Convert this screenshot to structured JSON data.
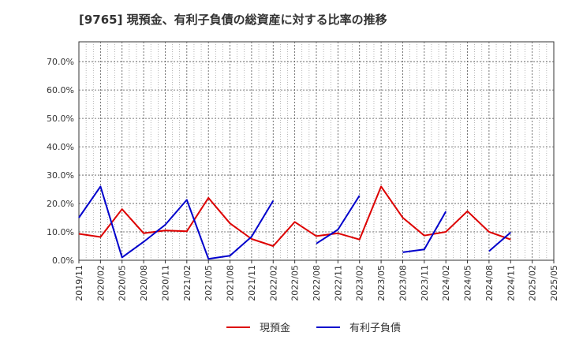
{
  "chart_data": {
    "type": "line",
    "title": "[9765]  現預金、有利子負債の総資産に対する比率の推移",
    "xlabel": "",
    "ylabel": "",
    "ylim": [
      0,
      77
    ],
    "yticks": [
      0,
      10,
      20,
      30,
      40,
      50,
      60,
      70
    ],
    "ytick_labels": [
      "0.0%",
      "10.0%",
      "20.0%",
      "30.0%",
      "40.0%",
      "50.0%",
      "60.0%",
      "70.0%"
    ],
    "categories": [
      "2019/11",
      "2020/02",
      "2020/05",
      "2020/08",
      "2020/11",
      "2021/02",
      "2021/05",
      "2021/08",
      "2021/11",
      "2022/02",
      "2022/05",
      "2022/08",
      "2022/11",
      "2023/02",
      "2023/05",
      "2023/08",
      "2023/11",
      "2024/02",
      "2024/05",
      "2024/08",
      "2024/11",
      "2025/02",
      "2025/05"
    ],
    "grid": true,
    "legend_position": "bottom",
    "series": [
      {
        "name": "現預金",
        "color": "#dd0000",
        "values": [
          9.3,
          8.2,
          18.0,
          9.5,
          10.5,
          10.2,
          22.0,
          13.0,
          7.5,
          5.0,
          13.5,
          8.5,
          9.5,
          7.3,
          26.0,
          15.0,
          8.7,
          10.0,
          17.3,
          10.0,
          7.3,
          null,
          null
        ]
      },
      {
        "name": "有利子負債",
        "color": "#0000cc",
        "values": [
          15.0,
          26.0,
          1.0,
          6.5,
          12.5,
          21.3,
          0.5,
          1.6,
          8.3,
          21.0,
          null,
          5.9,
          10.8,
          22.8,
          null,
          2.8,
          3.8,
          17.2,
          null,
          3.2,
          9.8,
          null,
          null
        ]
      }
    ]
  }
}
